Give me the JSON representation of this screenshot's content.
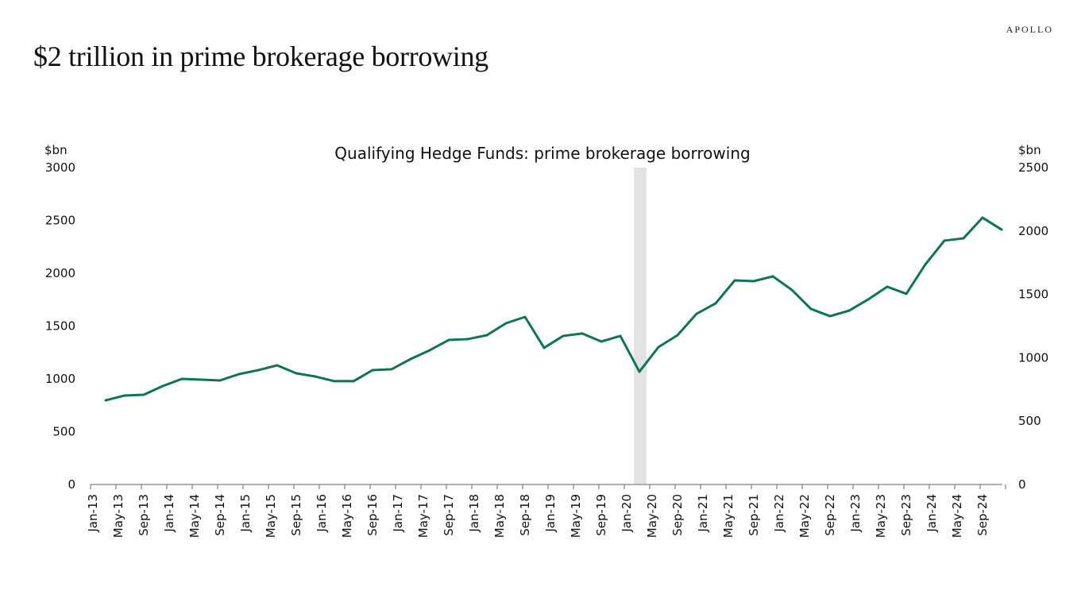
{
  "header": {
    "title": "$2 trillion in prime brokerage borrowing",
    "logo": "APOLLO"
  },
  "chart_data": {
    "type": "line",
    "title": "Qualifying Hedge Funds: prime brokerage borrowing",
    "ylabel_left": "$bn",
    "ylabel_right": "$bn",
    "ylim_left": [
      0,
      3000
    ],
    "ylim_right": [
      0,
      2500
    ],
    "yticks_left": [
      "0",
      "500",
      "1000",
      "1500",
      "2000",
      "2500",
      "3000"
    ],
    "yticks_right": [
      "0",
      "500",
      "1000",
      "1500",
      "2000",
      "2500"
    ],
    "xtick_labels": [
      "Jan-13",
      "May-13",
      "Sep-13",
      "Jan-14",
      "May-14",
      "Sep-14",
      "Jan-15",
      "May-15",
      "Sep-15",
      "Jan-16",
      "May-16",
      "Sep-16",
      "Jan-17",
      "May-17",
      "Sep-17",
      "Jan-18",
      "May-18",
      "Sep-18",
      "Jan-19",
      "May-19",
      "Sep-19",
      "Jan-20",
      "May-20",
      "Sep-20",
      "Jan-21",
      "May-21",
      "Sep-21",
      "Jan-22",
      "May-22",
      "Sep-22",
      "Jan-23",
      "May-23",
      "Sep-23",
      "Jan-24",
      "May-24",
      "Sep-24"
    ],
    "recession_shading": [
      "Feb-20",
      "Apr-20"
    ],
    "grid": false,
    "series": [
      {
        "name": "Prime brokerage borrowing ($bn, right axis)",
        "color": "#0e7358",
        "x_start": "Mar-13",
        "frequency": "quarterly",
        "values": [
          664,
          702,
          708,
          777,
          833,
          827,
          821,
          871,
          902,
          940,
          877,
          852,
          815,
          815,
          902,
          909,
          990,
          1059,
          1140,
          1147,
          1178,
          1272,
          1322,
          1078,
          1172,
          1191,
          1128,
          1172,
          890,
          1084,
          1178,
          1347,
          1429,
          1610,
          1604,
          1642,
          1535,
          1385,
          1328,
          1372,
          1460,
          1560,
          1504,
          1736,
          1924,
          1942,
          2105,
          2011
        ]
      }
    ]
  }
}
